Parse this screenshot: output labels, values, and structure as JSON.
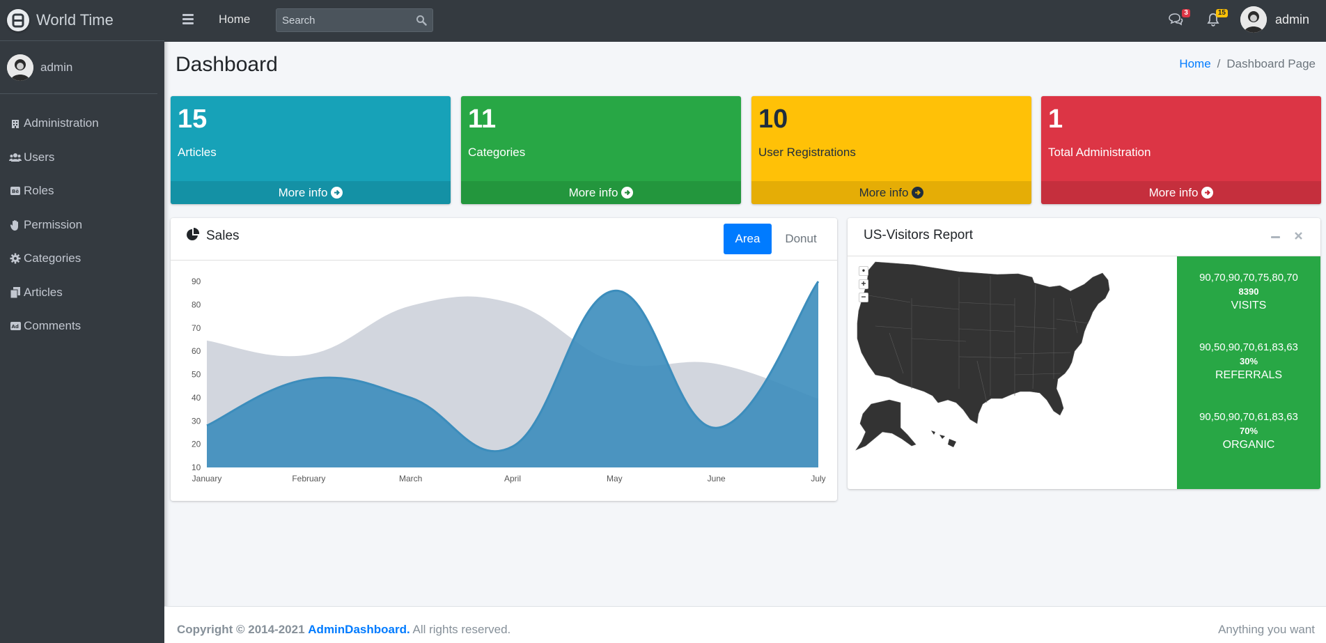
{
  "brand": {
    "title": "World Time"
  },
  "sidebar": {
    "user": "admin",
    "items": [
      {
        "label": "Administration",
        "icon": "building-icon"
      },
      {
        "label": "Users",
        "icon": "users-icon"
      },
      {
        "label": "Roles",
        "icon": "behance-icon"
      },
      {
        "label": "Permission",
        "icon": "hand-icon"
      },
      {
        "label": "Categories",
        "icon": "cog-icon"
      },
      {
        "label": "Articles",
        "icon": "copy-icon"
      },
      {
        "label": "Comments",
        "icon": "ad-icon"
      }
    ]
  },
  "topbar": {
    "home": "Home",
    "search_placeholder": "Search",
    "messages_badge": "3",
    "notifications_badge": "15",
    "user": "admin"
  },
  "header": {
    "title": "Dashboard",
    "breadcrumb_home": "Home",
    "breadcrumb_sep": "/",
    "breadcrumb_current": "Dashboard Page"
  },
  "boxes": [
    {
      "value": "15",
      "label": "Articles",
      "more": "More info",
      "color": "#17a2b8"
    },
    {
      "value": "11",
      "label": "Categories",
      "more": "More info",
      "color": "#28a745"
    },
    {
      "value": "10",
      "label": "User Registrations",
      "more": "More info",
      "color": "#ffc107"
    },
    {
      "value": "1",
      "label": "Total Administration",
      "more": "More info",
      "color": "#dc3545"
    }
  ],
  "sales": {
    "title": "Sales",
    "tab_area": "Area",
    "tab_donut": "Donut"
  },
  "chart_data": {
    "type": "area",
    "categories": [
      "January",
      "February",
      "March",
      "April",
      "May",
      "June",
      "July"
    ],
    "series": [
      {
        "values": [
          65,
          59,
          80,
          81,
          56,
          55,
          40
        ],
        "color": "#d2d6de"
      },
      {
        "values": [
          28,
          48,
          40,
          19,
          86,
          27,
          90
        ],
        "color": "#3c8dbc"
      }
    ],
    "yticks": [
      10,
      20,
      30,
      40,
      50,
      60,
      70,
      80,
      90
    ],
    "ylim": [
      10,
      90
    ]
  },
  "visitors": {
    "title": "US-Visitors Report",
    "stats": [
      {
        "spark": "90,70,90,70,75,80,70",
        "value": "8390",
        "label": "VISITS"
      },
      {
        "spark": "90,50,90,70,61,83,63",
        "value": "30%",
        "label": "REFERRALS"
      },
      {
        "spark": "90,50,90,70,61,83,63",
        "value": "70%",
        "label": "ORGANIC"
      }
    ],
    "panel_color": "#28a745"
  },
  "footer": {
    "copyright": "Copyright © 2014-2021",
    "brand": "AdminDashboard.",
    "rights": "All rights reserved.",
    "right": "Anything you want"
  }
}
